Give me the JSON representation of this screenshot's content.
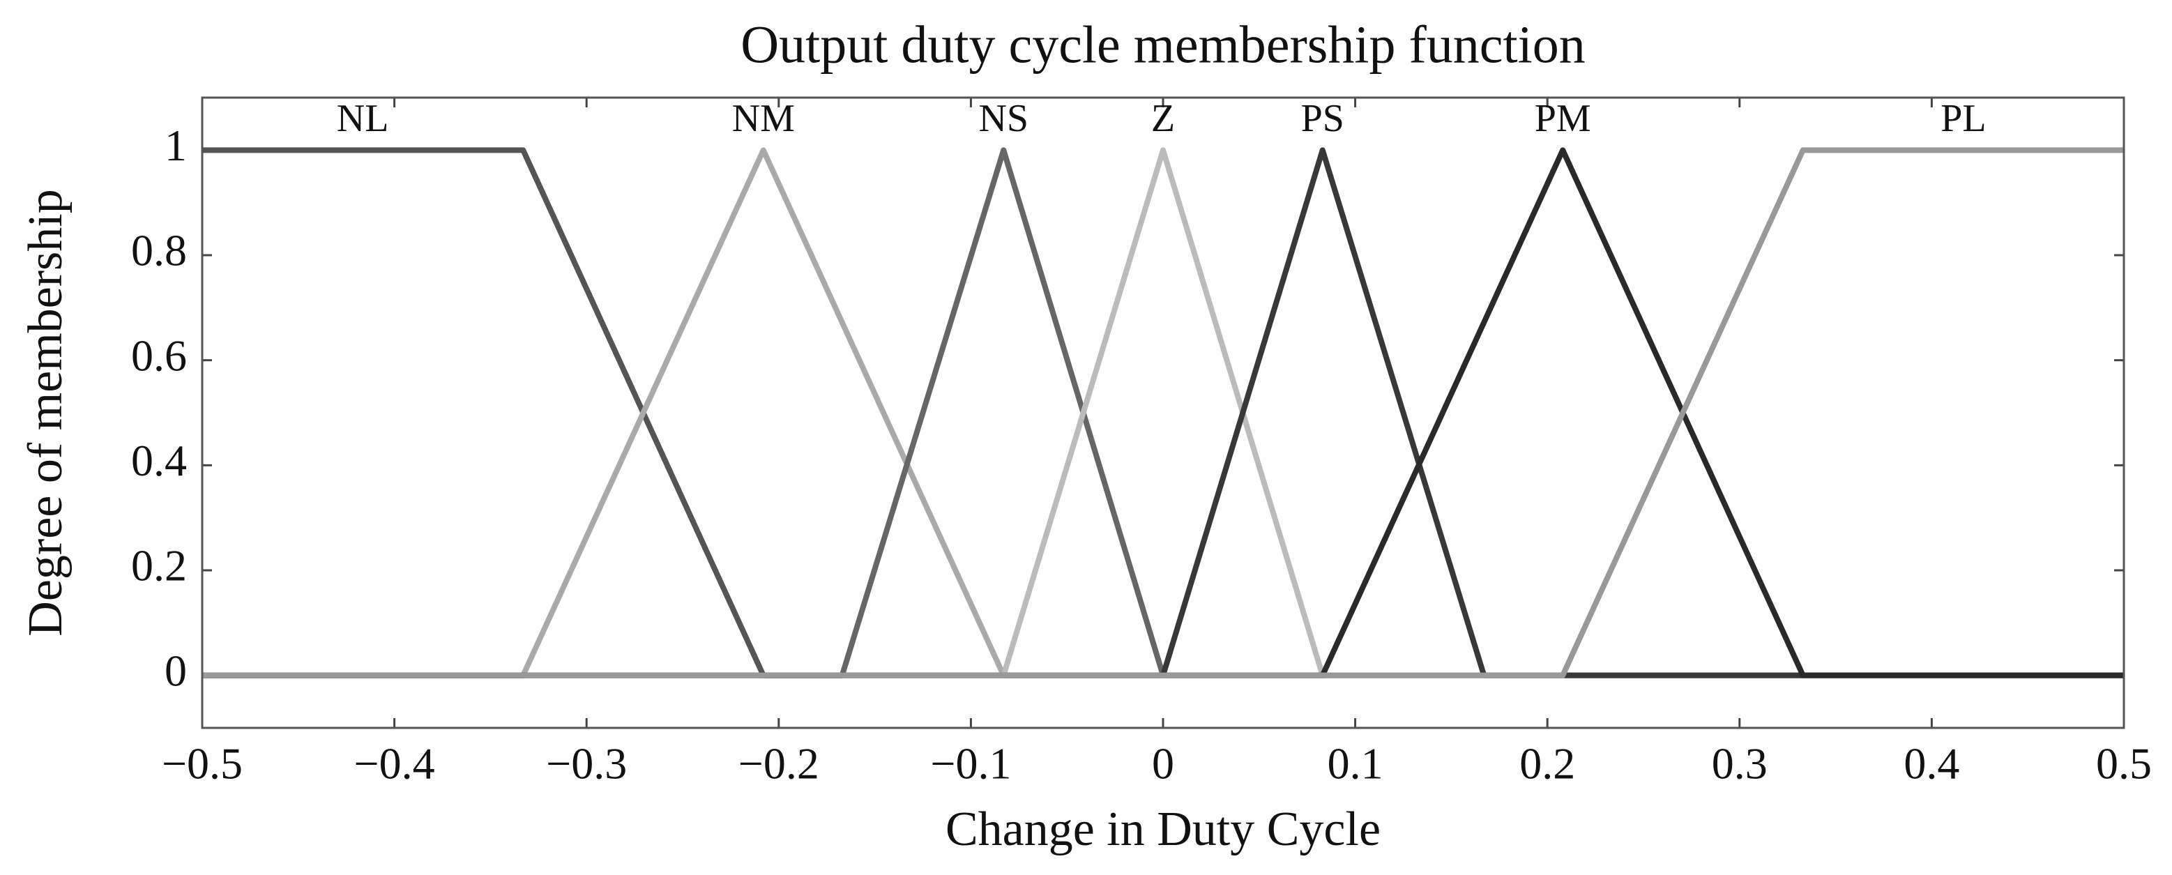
{
  "chart_data": {
    "type": "line",
    "title": "Output duty cycle membership function",
    "xlabel": "Change in Duty Cycle",
    "ylabel": "Degree of membership",
    "xlim": [
      -0.5,
      0.5
    ],
    "ylim": [
      -0.1,
      1.1
    ],
    "xticks": [
      {
        "value": -0.5,
        "label": "−0.5"
      },
      {
        "value": -0.4,
        "label": "−0.4"
      },
      {
        "value": -0.3,
        "label": "−0.3"
      },
      {
        "value": -0.2,
        "label": "−0.2"
      },
      {
        "value": -0.1,
        "label": "−0.1"
      },
      0,
      0.1,
      0.2,
      0.3,
      0.4,
      0.5
    ],
    "yticks": [
      0,
      0.2,
      0.4,
      0.6,
      0.8,
      1
    ],
    "grid": false,
    "series": [
      {
        "name": "NL",
        "color": "#555555",
        "x": [
          -0.5,
          -0.333,
          -0.208,
          0.5
        ],
        "values": [
          1,
          1,
          0,
          0
        ]
      },
      {
        "name": "NM",
        "color": "#aaaaaa",
        "x": [
          -0.5,
          -0.333,
          -0.208,
          -0.083,
          0.5
        ],
        "values": [
          0,
          0,
          1,
          0,
          0
        ]
      },
      {
        "name": "NS",
        "color": "#666666",
        "x": [
          -0.5,
          -0.167,
          -0.083,
          0,
          0.5
        ],
        "values": [
          0,
          0,
          1,
          0,
          0
        ]
      },
      {
        "name": "Z",
        "color": "#bbbbbb",
        "x": [
          -0.5,
          -0.083,
          0,
          0.083,
          0.5
        ],
        "values": [
          0,
          0,
          1,
          0,
          0
        ]
      },
      {
        "name": "PS",
        "color": "#383838",
        "x": [
          -0.5,
          0,
          0.083,
          0.167,
          0.5
        ],
        "values": [
          0,
          0,
          1,
          0,
          0
        ]
      },
      {
        "name": "PM",
        "color": "#2a2a2a",
        "x": [
          -0.5,
          0.083,
          0.208,
          0.333,
          0.5
        ],
        "values": [
          0,
          0,
          1,
          0,
          0
        ]
      },
      {
        "name": "PL",
        "color": "#999999",
        "x": [
          -0.5,
          0.208,
          0.333,
          0.5
        ],
        "values": [
          0,
          0,
          1,
          1
        ]
      }
    ]
  }
}
